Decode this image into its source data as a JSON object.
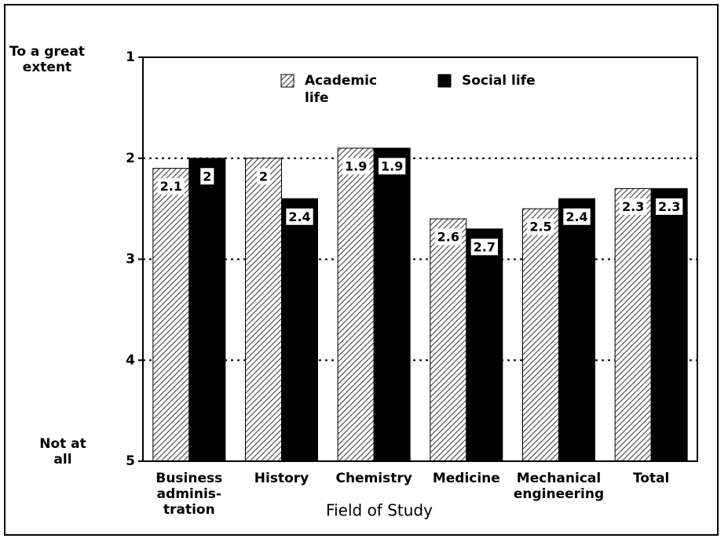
{
  "chart_data": {
    "type": "bar",
    "y_top_label": [
      "To a great",
      "extent"
    ],
    "y_bottom_label": [
      "Not at",
      "all"
    ],
    "x_label": "Field of Study",
    "categories": [
      [
        "Business",
        "adminis-",
        "tration"
      ],
      [
        "History"
      ],
      [
        "Chemistry"
      ],
      [
        "Medicine"
      ],
      [
        "Mechanical",
        "engineering"
      ],
      [
        "Total"
      ]
    ],
    "series": [
      {
        "name": [
          "Academic",
          "life"
        ],
        "color": "#555555",
        "values": [
          2.1,
          2,
          1.9,
          2.6,
          2.5,
          2.3
        ]
      },
      {
        "name": [
          "Social life"
        ],
        "color": "#000000",
        "values": [
          2,
          2.4,
          1.9,
          2.7,
          2.4,
          2.3
        ]
      }
    ],
    "ylim": [
      1,
      5
    ],
    "yticks": [
      1,
      2,
      3,
      4,
      5
    ],
    "y_reversed": true,
    "grid": true
  }
}
